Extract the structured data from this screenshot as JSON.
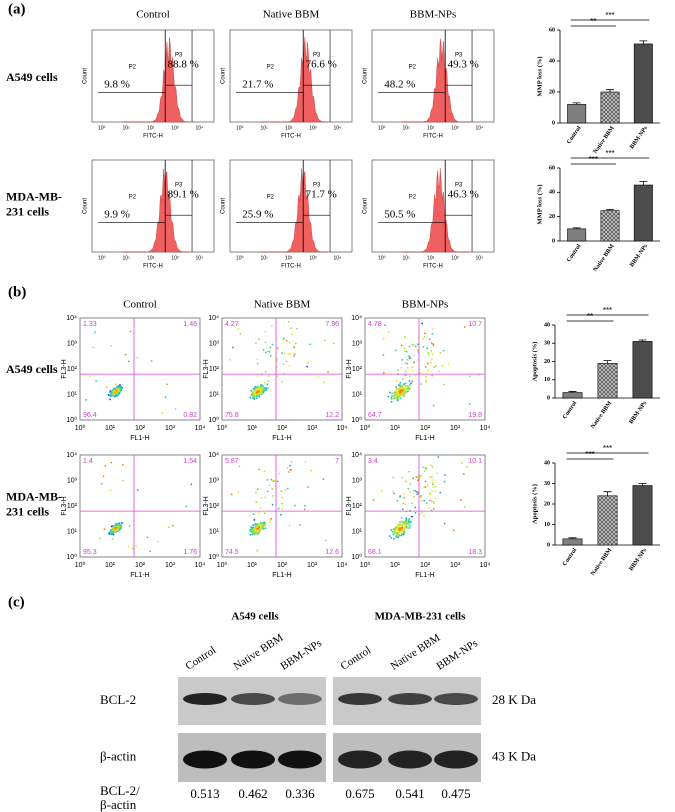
{
  "panel_labels": [
    "(a)",
    "(b)",
    "(c)"
  ],
  "groups": [
    "Control",
    "Native BBM",
    "BBM-NPs"
  ],
  "rows": [
    [
      "A549 cells"
    ],
    [
      "MDA-MB-",
      "231 cells"
    ]
  ],
  "histogram": {
    "ylabel": "Count",
    "xlabel": "FITC-H",
    "xticks": [
      "10⁰",
      "10¹",
      "10²",
      "10³",
      "10⁴"
    ],
    "gates": [
      "P2",
      "P3"
    ],
    "percent": [
      [
        [
          "9.8 %",
          "88.8 %"
        ],
        [
          "21.7 %",
          "76.6 %"
        ],
        [
          "48.2 %",
          "49.3 %"
        ]
      ],
      [
        [
          "9.9 %",
          "89.1 %"
        ],
        [
          "25.9 %",
          "71.7 %"
        ],
        [
          "50.5 %",
          "46.3 %"
        ]
      ]
    ]
  },
  "flow": {
    "ylabel": "FL3-H",
    "xlabel": "FL1-H",
    "ticks": [
      "10⁰",
      "10¹",
      "10²",
      "10³",
      "10⁴"
    ],
    "quadrants": [
      [
        [
          "1.33",
          "1.46",
          "96.4",
          "0.82"
        ],
        [
          "4.27",
          "7.96",
          "75.8",
          "12.2"
        ],
        [
          "4.78",
          "10.7",
          "64.7",
          "19.8"
        ]
      ],
      [
        [
          "1.4",
          "1.54",
          "95.3",
          "1.76"
        ],
        [
          "5.87",
          "7",
          "74.5",
          "12.6"
        ],
        [
          "3.4",
          "10.1",
          "68.1",
          "18.3"
        ]
      ]
    ]
  },
  "chart_data": [
    {
      "type": "bar",
      "ylabel": "MMP loss (%)",
      "categories": [
        "Control",
        "Native BBM",
        "BBM-NPs"
      ],
      "values": [
        12,
        20,
        51
      ],
      "errors": [
        1,
        1.5,
        2
      ],
      "colors": [
        "#7f7f7f",
        "#c4c4c4",
        "#4d4d4d"
      ],
      "ylim": [
        0,
        60
      ],
      "yticks": [
        0,
        20,
        40,
        60
      ],
      "significance": [
        "**",
        "***"
      ]
    },
    {
      "type": "bar",
      "ylabel": "MMP loss (%)",
      "categories": [
        "Control",
        "Native BBM",
        "BBM-NPs"
      ],
      "values": [
        10,
        25,
        46
      ],
      "errors": [
        0.8,
        1,
        3
      ],
      "colors": [
        "#7f7f7f",
        "#c4c4c4",
        "#4d4d4d"
      ],
      "ylim": [
        0,
        60
      ],
      "yticks": [
        0,
        20,
        40,
        60
      ],
      "significance": [
        "***",
        "***"
      ]
    },
    {
      "type": "bar",
      "ylabel": "Apoptosis (%)",
      "categories": [
        "Control",
        "Native BBM",
        "BBM-NPs"
      ],
      "values": [
        3,
        19,
        31
      ],
      "errors": [
        0.6,
        1.5,
        0.8
      ],
      "colors": [
        "#7f7f7f",
        "#c4c4c4",
        "#4d4d4d"
      ],
      "ylim": [
        0,
        40
      ],
      "yticks": [
        0,
        10,
        20,
        30,
        40
      ],
      "significance": [
        "**",
        "***"
      ]
    },
    {
      "type": "bar",
      "ylabel": "Apoptosis (%)",
      "categories": [
        "Control",
        "Native BBM",
        "BBM-NPs"
      ],
      "values": [
        3,
        24,
        29
      ],
      "errors": [
        0.5,
        2,
        1
      ],
      "colors": [
        "#7f7f7f",
        "#c4c4c4",
        "#4d4d4d"
      ],
      "ylim": [
        0,
        40
      ],
      "yticks": [
        0,
        10,
        20,
        30,
        40
      ],
      "significance": [
        "***",
        "***"
      ]
    }
  ],
  "blot": {
    "headers": [
      "A549 cells",
      "MDA-MB-231 cells"
    ],
    "lanes": [
      "Control",
      "Native BBM",
      "BBM-NPs",
      "Control",
      "Native BBM",
      "BBM-NPs"
    ],
    "rows": [
      "BCL-2",
      "β-actin"
    ],
    "sizes": [
      "28 K Da",
      "43 K Da"
    ],
    "ratio_label": [
      "BCL-2/",
      "β-actin"
    ],
    "ratios": [
      "0.513",
      "0.462",
      "0.336",
      "0.675",
      "0.541",
      "0.475"
    ]
  }
}
